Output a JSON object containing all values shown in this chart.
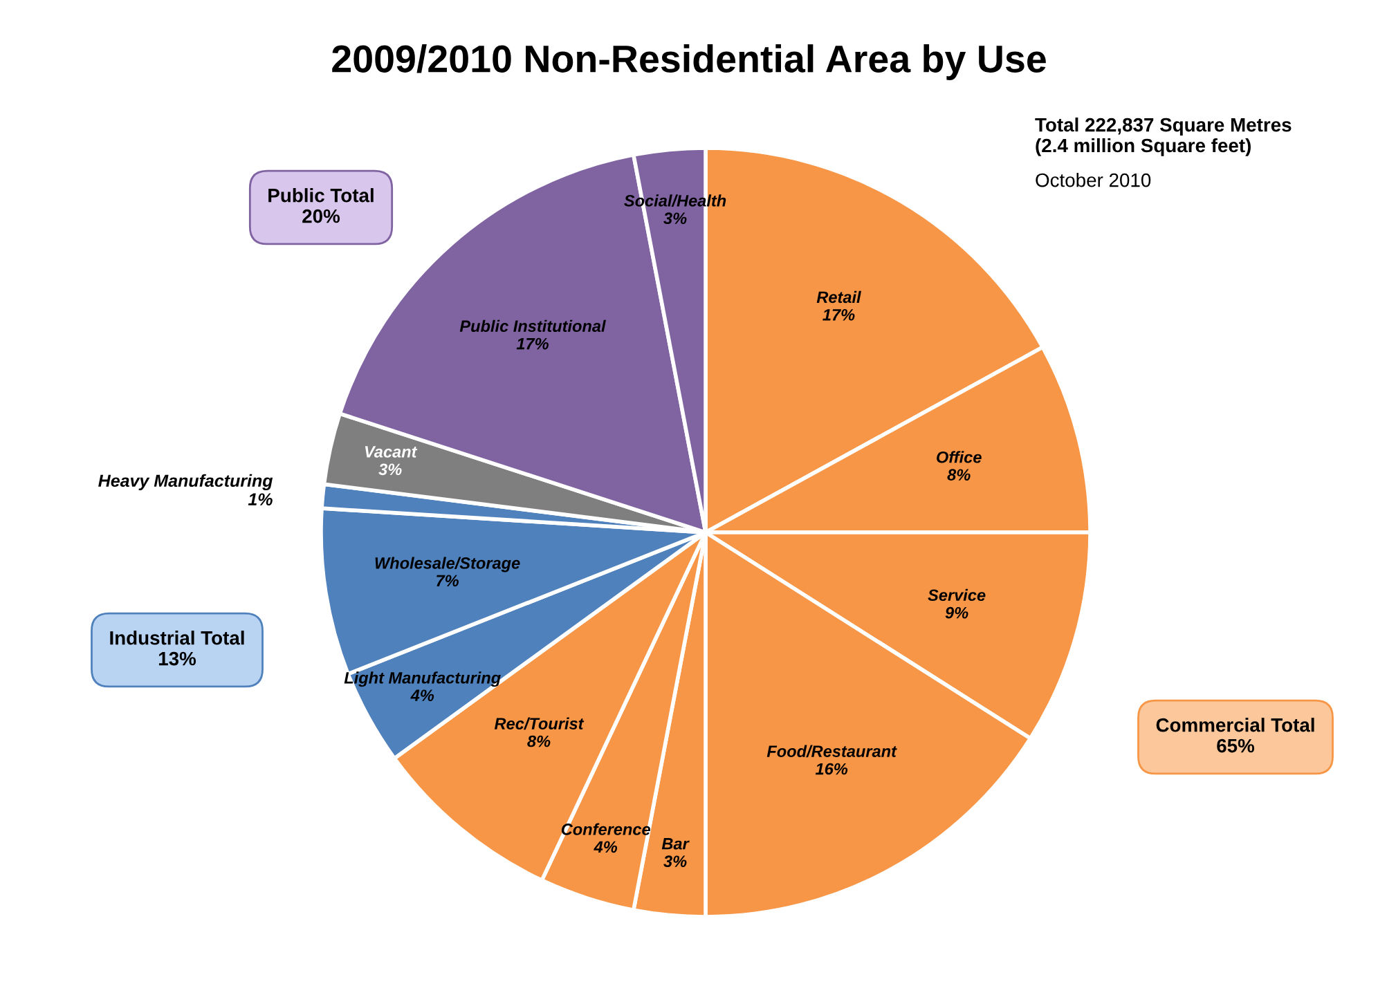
{
  "chart_data": {
    "type": "pie",
    "title": "2009/2010 Non-Residential Area by Use",
    "categories": [
      "Retail",
      "Office",
      "Service",
      "Food/Restaurant",
      "Bar",
      "Conference",
      "Rec/Tourist",
      "Light Manufacturing",
      "Wholesale/Storage",
      "Heavy Manufacturing",
      "Vacant",
      "Public Institutional",
      "Social/Health"
    ],
    "values": [
      17,
      8,
      9,
      16,
      3,
      4,
      8,
      4,
      7,
      1,
      3,
      17,
      3
    ],
    "colors": [
      "#f79646",
      "#f79646",
      "#f79646",
      "#f79646",
      "#f79646",
      "#f79646",
      "#f79646",
      "#4f81bd",
      "#4f81bd",
      "#4f81bd",
      "#7f7f7f",
      "#8064a2",
      "#8064a2"
    ],
    "value_labels": [
      "17%",
      "8%",
      "9%",
      "16%",
      "3%",
      "4%",
      "8%",
      "4%",
      "7%",
      "1%",
      "3%",
      "17%",
      "3%"
    ],
    "annotations": [
      "Public Total\n20%",
      "Industrial Total\n13%",
      "Commercial Total\n65%",
      "Total 222,837 Square Metres\n(2.4 million Square feet)",
      "October 2010"
    ]
  }
}
